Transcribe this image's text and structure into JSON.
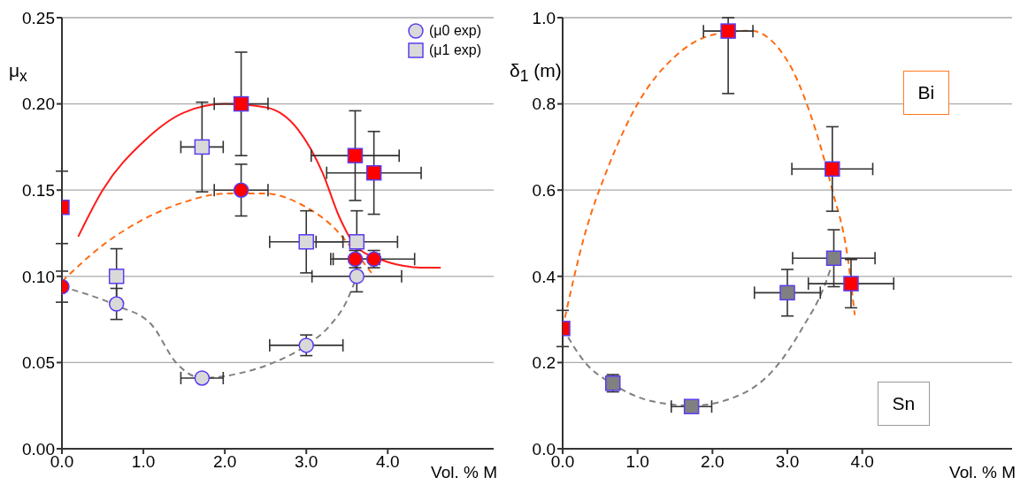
{
  "chart_data": [
    {
      "type": "scatter",
      "ylabel": "μ$_{x}$",
      "xlabel": "Vol. % M",
      "xlim": [
        0,
        5.3
      ],
      "ylim": [
        0,
        0.25
      ],
      "xticks": [
        {
          "value": 0,
          "label": "0.0"
        },
        {
          "value": 1,
          "label": "1.0"
        },
        {
          "value": 2,
          "label": "2.0"
        },
        {
          "value": 3,
          "label": "3.0"
        },
        {
          "value": 4,
          "label": "4.0"
        }
      ],
      "yticks": [
        {
          "value": 0,
          "label": "0.00"
        },
        {
          "value": 0.05,
          "label": "0.05"
        },
        {
          "value": 0.1,
          "label": "0.10"
        },
        {
          "value": 0.15,
          "label": "0.15"
        },
        {
          "value": 0.2,
          "label": "0.20"
        },
        {
          "value": 0.25,
          "label": "0.25"
        }
      ],
      "grid": "y",
      "legend": "top right",
      "series": [
        {
          "type": "line",
          "color": "#ff1a1a",
          "line_style": "solid",
          "x": [
            0.2,
            0.5,
            1.0,
            1.5,
            2.0,
            2.5,
            2.9,
            3.2,
            3.4,
            3.6,
            3.9,
            4.2,
            4.4,
            4.65
          ],
          "values": [
            0.123,
            0.15,
            0.178,
            0.195,
            0.2,
            0.198,
            0.185,
            0.16,
            0.135,
            0.118,
            0.11,
            0.106,
            0.105,
            0.105
          ]
        },
        {
          "type": "line",
          "color": "#ff6a10",
          "line_style": "dashed",
          "x": [
            0,
            0.5,
            1.0,
            1.5,
            2.0,
            2.5,
            3.0,
            3.3,
            3.6,
            3.8
          ],
          "values": [
            0.097,
            0.118,
            0.133,
            0.143,
            0.148,
            0.148,
            0.14,
            0.13,
            0.114,
            0.102
          ]
        },
        {
          "type": "line",
          "color": "#808080",
          "line_style": "dashed",
          "x": [
            0,
            0.67,
            1.1,
            1.4,
            1.72,
            2.2,
            2.6,
            3.0,
            3.3,
            3.5,
            3.62
          ],
          "values": [
            0.094,
            0.083,
            0.072,
            0.05,
            0.041,
            0.044,
            0.05,
            0.06,
            0.072,
            0.086,
            0.1
          ]
        },
        {
          "name": "(μ0 exp)",
          "type": "scatter",
          "marker": "circle",
          "color": "#d9d9d9",
          "x": [
            0.67,
            1.72,
            3.0,
            3.62
          ],
          "values": [
            0.084,
            0.041,
            0.06,
            0.1
          ],
          "errors": [
            0.009,
            null,
            0.006,
            0.009
          ],
          "xerrors": [
            null,
            0.26,
            0.45,
            0.55
          ]
        },
        {
          "name": "(μ1 exp)",
          "type": "scatter",
          "marker": "square",
          "color": "#d9d9d9",
          "x": [
            0.67,
            1.72,
            3.0,
            3.62
          ],
          "values": [
            0.1,
            0.175,
            0.12,
            0.12
          ],
          "errors": [
            0.016,
            0.026,
            0.018,
            0.018
          ],
          "xerrors": [
            null,
            0.26,
            0.45,
            0.5
          ]
        },
        {
          "type": "scatter",
          "marker": "circle",
          "color": "#ff0000",
          "x": [
            0,
            2.2,
            3.6,
            3.83
          ],
          "values": [
            0.094,
            0.15,
            0.11,
            0.11
          ],
          "errors": [
            0.009,
            0.015,
            0.005,
            0.005
          ],
          "xerrors": [
            null,
            0.33,
            0.3,
            0.5
          ]
        },
        {
          "type": "scatter",
          "marker": "square",
          "color": "#ff0000",
          "x": [
            0,
            2.2,
            3.6,
            3.83
          ],
          "values": [
            0.14,
            0.2,
            0.17,
            0.16
          ],
          "errors": [
            0.021,
            0.03,
            0.026,
            0.024
          ],
          "xerrors": [
            null,
            0.33,
            0.54,
            0.58
          ]
        }
      ]
    },
    {
      "type": "scatter",
      "ylabel": "δ$_{1}$ (m)",
      "xlabel": "Vol. % M",
      "xlim": [
        0,
        6
      ],
      "ylim": [
        0,
        1
      ],
      "xticks": [
        {
          "value": 0,
          "label": "0.0"
        },
        {
          "value": 1,
          "label": "1.0"
        },
        {
          "value": 2,
          "label": "2.0"
        },
        {
          "value": 3,
          "label": "3.0"
        },
        {
          "value": 4,
          "label": "4.0"
        }
      ],
      "yticks": [
        {
          "value": 0,
          "label": "0.0"
        },
        {
          "value": 0.2,
          "label": "0.2"
        },
        {
          "value": 0.4,
          "label": "0.4"
        },
        {
          "value": 0.6,
          "label": "0.6"
        },
        {
          "value": 0.8,
          "label": "0.8"
        },
        {
          "value": 1,
          "label": "1.0"
        }
      ],
      "grid": "y",
      "annotations": [
        "Bi",
        "Sn"
      ],
      "series": [
        {
          "type": "line",
          "color": "#ff6a10",
          "line_style": "dashed",
          "x": [
            0,
            0.3,
            0.6,
            1.0,
            1.5,
            2.0,
            2.5,
            3.0,
            3.3,
            3.6,
            3.8,
            3.9
          ],
          "values": [
            0.28,
            0.5,
            0.65,
            0.8,
            0.91,
            0.96,
            0.97,
            0.9,
            0.78,
            0.6,
            0.45,
            0.31
          ]
        },
        {
          "type": "line",
          "color": "#808080",
          "line_style": "dashed",
          "x": [
            0,
            0.3,
            0.67,
            1.2,
            1.72,
            2.3,
            2.8,
            3.2,
            3.5,
            3.62
          ],
          "values": [
            0.28,
            0.2,
            0.15,
            0.11,
            0.1,
            0.12,
            0.18,
            0.28,
            0.38,
            0.44
          ]
        },
        {
          "type": "scatter",
          "marker": "square",
          "color": "#808080",
          "x": [
            0.67,
            1.72,
            3.0,
            3.62
          ],
          "values": [
            0.152,
            0.098,
            0.362,
            0.442
          ],
          "errors": [
            0.02,
            null,
            0.054,
            0.066
          ],
          "xerrors": [
            null,
            0.27,
            0.44,
            0.55
          ]
        },
        {
          "type": "scatter",
          "marker": "square",
          "color": "#ff0000",
          "x": [
            0,
            2.21,
            3.6,
            3.85
          ],
          "values": [
            0.279,
            0.969,
            0.649,
            0.383
          ],
          "errors": [
            0.042,
            [
              0.824,
              1.0
            ],
            0.098,
            0.056
          ],
          "xerrors": [
            null,
            0.33,
            0.54,
            0.57
          ]
        }
      ]
    }
  ]
}
